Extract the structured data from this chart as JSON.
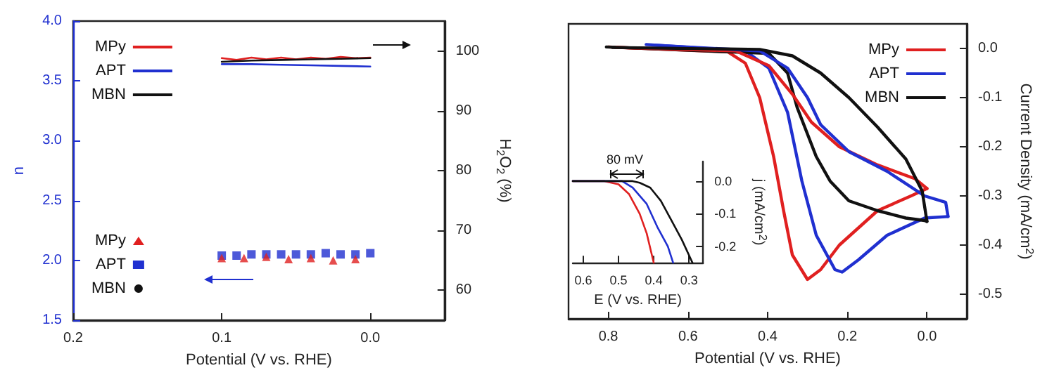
{
  "chart_data": [
    {
      "type": "line",
      "xlabel": "Potential (V vs. RHE)",
      "ylabel": "n",
      "y2label": "H$_{2}$O$_{2}$ (%)",
      "xlim": [
        0.2,
        -0.05
      ],
      "xticks": [
        0.2,
        0.1,
        {
          "value": 0,
          "label": "0.0"
        }
      ],
      "ylim": [
        1.5,
        4.0
      ],
      "yticks": [
        1.5,
        {
          "value": 2,
          "label": "2.0"
        },
        2.5,
        {
          "value": 3,
          "label": "3.0"
        },
        3.5,
        {
          "value": 4,
          "label": "4.0"
        }
      ],
      "y2lim": [
        55,
        105
      ],
      "y2ticks": [
        60,
        70,
        80,
        90,
        100
      ],
      "grid": false,
      "legend": "left",
      "series": [
        {
          "name": "MPy",
          "type": "line",
          "axis": "y2",
          "color": "#e02020",
          "line_style": "solid",
          "marker": "none",
          "x": [
            0.1,
            0.09,
            0.08,
            0.07,
            0.06,
            0.05,
            0.04,
            0.03,
            0.02,
            0.01,
            0.0
          ],
          "values": [
            98.8,
            98.5,
            98.9,
            98.6,
            98.9,
            98.6,
            98.9,
            98.7,
            99.0,
            98.8,
            98.9
          ]
        },
        {
          "name": "APT",
          "type": "line",
          "axis": "y2",
          "color": "#2030d0",
          "line_style": "solid",
          "marker": "none",
          "x": [
            0.1,
            0.08,
            0.06,
            0.04,
            0.02,
            0.0
          ],
          "values": [
            97.8,
            97.8,
            97.7,
            97.6,
            97.5,
            97.4
          ]
        },
        {
          "name": "MBN",
          "type": "line",
          "axis": "y2",
          "color": "#111111",
          "line_style": "solid",
          "marker": "none",
          "x": [
            0.1,
            0.08,
            0.06,
            0.04,
            0.02,
            0.0
          ],
          "values": [
            98.2,
            98.4,
            98.5,
            98.6,
            98.7,
            98.8
          ]
        },
        {
          "name": "MPy",
          "type": "scatter",
          "axis": "y",
          "color": "#e02020",
          "marker": "triangle",
          "x": [
            0.1,
            0.085,
            0.07,
            0.055,
            0.04,
            0.025,
            0.01
          ],
          "values": [
            2.02,
            2.02,
            2.03,
            2.01,
            2.02,
            2.0,
            2.01
          ]
        },
        {
          "name": "APT",
          "type": "scatter",
          "axis": "y",
          "color": "#2030d0",
          "marker": "square",
          "x": [
            0.1,
            0.09,
            0.08,
            0.07,
            0.06,
            0.05,
            0.04,
            0.03,
            0.02,
            0.01,
            0.0
          ],
          "values": [
            2.04,
            2.04,
            2.05,
            2.05,
            2.05,
            2.05,
            2.05,
            2.06,
            2.05,
            2.05,
            2.06
          ]
        },
        {
          "name": "MBN",
          "type": "scatter",
          "axis": "y",
          "color": "#111111",
          "marker": "circle"
        }
      ]
    },
    {
      "type": "line",
      "xlabel": "Potential (V vs. RHE)",
      "ylabel": "Current Density (mA/cm$^{2}$)",
      "xlim": [
        0.9,
        -0.1
      ],
      "xticks": [
        0.8,
        0.6,
        0.4,
        0.2,
        {
          "value": 0,
          "label": "0.0"
        }
      ],
      "ylim": [
        -0.55,
        0.05
      ],
      "yticks": [
        -0.5,
        -0.4,
        -0.3,
        -0.2,
        -0.1,
        {
          "value": 0,
          "label": "0.0"
        }
      ],
      "grid": false,
      "legend": "top right",
      "line_style": "solid",
      "marker": "none",
      "series": [
        {
          "name": "MPy",
          "color": "#e02020",
          "x": [
            0.8,
            0.5,
            0.456,
            0.42,
            0.385,
            0.36,
            0.338,
            0.3,
            0.267,
            0.22,
            0.124,
            0.04,
            0.0
          ],
          "values": [
            0.003,
            -0.007,
            -0.03,
            -0.1,
            -0.22,
            -0.33,
            -0.42,
            -0.47,
            -0.45,
            -0.4,
            -0.33,
            -0.3,
            -0.285
          ]
        },
        {
          "name": "APT",
          "color": "#2030d0",
          "x": [
            0.705,
            0.456,
            0.397,
            0.35,
            0.314,
            0.278,
            0.231,
            0.213,
            0.172,
            0.1,
            0.006,
            -0.053
          ],
          "values": [
            0.008,
            -0.005,
            -0.04,
            -0.13,
            -0.27,
            -0.38,
            -0.45,
            -0.455,
            -0.43,
            -0.38,
            -0.345,
            -0.342
          ]
        },
        {
          "name": "MBN",
          "color": "#111111",
          "x": [
            0.805,
            0.397,
            0.35,
            0.326,
            0.278,
            0.243,
            0.196,
            0.124,
            0.053,
            0.006,
            0.0
          ],
          "values": [
            0.003,
            -0.01,
            -0.05,
            -0.12,
            -0.22,
            -0.27,
            -0.31,
            -0.33,
            -0.345,
            -0.35,
            -0.352
          ]
        },
        {
          "color": "#e02020",
          "x": [
            0.0,
            0.03,
            0.124,
            0.22,
            0.29,
            0.338,
            0.397,
            0.48,
            0.78
          ],
          "values": [
            -0.285,
            -0.265,
            -0.237,
            -0.2,
            -0.15,
            -0.093,
            -0.035,
            -0.005,
            0.002
          ]
        },
        {
          "color": "#2030d0",
          "x": [
            -0.053,
            -0.047,
            0.006,
            0.1,
            0.196,
            0.267,
            0.3,
            0.35,
            0.42,
            0.69
          ],
          "values": [
            -0.342,
            -0.313,
            -0.3,
            -0.25,
            -0.21,
            -0.155,
            -0.1,
            -0.04,
            -0.005,
            0.007
          ]
        },
        {
          "color": "#111111",
          "x": [
            0.0,
            0.012,
            0.053,
            0.124,
            0.196,
            0.267,
            0.338,
            0.42,
            0.79
          ],
          "values": [
            -0.352,
            -0.29,
            -0.225,
            -0.16,
            -0.1,
            -0.05,
            -0.015,
            -0.002,
            0.002
          ]
        }
      ]
    },
    {
      "type": "line",
      "xlabel": "E (V vs. RHE)",
      "ylabel": "j (mA/cm$^{2}$)",
      "xlim": [
        0.63,
        0.26
      ],
      "xticks": [
        0.6,
        0.5,
        0.4,
        0.3
      ],
      "ylim": [
        -0.25,
        0.06
      ],
      "yticks": [
        -0.2,
        -0.1,
        {
          "value": 0,
          "label": "0.0"
        }
      ],
      "grid": false,
      "line_style": "solid",
      "marker": "none",
      "annotations": [
        "80 mV"
      ],
      "series": [
        {
          "color": "#e02020",
          "x": [
            0.63,
            0.54,
            0.5,
            0.47,
            0.44,
            0.42,
            0.4
          ],
          "values": [
            0,
            0,
            -0.01,
            -0.04,
            -0.1,
            -0.16,
            -0.25
          ]
        },
        {
          "color": "#2030d0",
          "x": [
            0.63,
            0.49,
            0.46,
            0.42,
            0.39,
            0.36,
            0.345
          ],
          "values": [
            0,
            0,
            -0.02,
            -0.07,
            -0.14,
            -0.2,
            -0.25
          ]
        },
        {
          "color": "#111111",
          "x": [
            0.63,
            0.46,
            0.44,
            0.41,
            0.38,
            0.35,
            0.32,
            0.29
          ],
          "values": [
            0,
            0,
            -0.005,
            -0.02,
            -0.06,
            -0.12,
            -0.18,
            -0.25
          ]
        }
      ]
    }
  ]
}
